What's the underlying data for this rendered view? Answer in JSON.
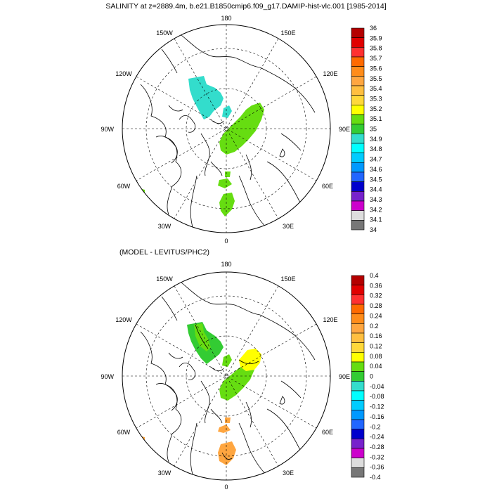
{
  "title": "SALINITY at z=2889.4m, b.e21.B1850cmip6.f09_g17.DAMIP-hist-vlc.001 [1985-2014]",
  "subtitle": "(MODEL - LEVITUS/PHC2)",
  "map_projection": "polar stereographic (north)",
  "longitude_labels": [
    "180",
    "150E",
    "120E",
    "90E",
    "60E",
    "30E",
    "0",
    "30W",
    "60W",
    "90W",
    "120W",
    "150W"
  ],
  "panels": [
    {
      "name": "salinity",
      "colorbar": {
        "labels": [
          "36",
          "35.9",
          "35.8",
          "35.7",
          "35.6",
          "35.5",
          "35.4",
          "35.3",
          "35.2",
          "35.1",
          "35",
          "34.9",
          "34.8",
          "34.7",
          "34.6",
          "34.5",
          "34.4",
          "34.3",
          "34.2",
          "34.1",
          "34"
        ],
        "colors": [
          "#b40000",
          "#e00000",
          "#ff3030",
          "#ff6a00",
          "#ff8c1a",
          "#ffa640",
          "#ffbf40",
          "#ffd83a",
          "#ffff00",
          "#66dd11",
          "#33cc33",
          "#33ddcc",
          "#00ffff",
          "#00ccff",
          "#0099ff",
          "#2266ff",
          "#0000cc",
          "#7722cc",
          "#cc00cc",
          "#dddddd",
          "#777777"
        ]
      },
      "regions": [
        {
          "id": "canada-basin-patch",
          "value_class": "34.9-35",
          "color": "#33ddcc"
        },
        {
          "id": "central-basin-patch",
          "value_class": "35.1-35.2",
          "color": "#66dd11"
        },
        {
          "id": "fram-strait-patch",
          "value_class": "35.1-35.2",
          "color": "#66dd11"
        },
        {
          "id": "greenland-sea-patch",
          "value_class": "35.1-35.2",
          "color": "#66dd11"
        },
        {
          "id": "labrador-patch",
          "value_class": "35.1-35.2",
          "color": "#66dd11"
        },
        {
          "id": "north-atlantic-patch",
          "value_class": "35.1-35.2",
          "color": "#66dd11"
        }
      ]
    },
    {
      "name": "difference",
      "colorbar": {
        "labels": [
          "0.4",
          "0.36",
          "0.32",
          "0.28",
          "0.24",
          "0.2",
          "0.16",
          "0.12",
          "0.08",
          "0.04",
          "0",
          "-0.04",
          "-0.08",
          "-0.12",
          "-0.16",
          "-0.2",
          "-0.24",
          "-0.28",
          "-0.32",
          "-0.36",
          "-0.4"
        ],
        "colors": [
          "#b40000",
          "#e00000",
          "#ff3030",
          "#ff6a00",
          "#ff8c1a",
          "#ffa640",
          "#ffbf40",
          "#ffd83a",
          "#ffff00",
          "#66dd11",
          "#33cc33",
          "#33ddcc",
          "#00ffff",
          "#00ccff",
          "#0099ff",
          "#2266ff",
          "#0000cc",
          "#7722cc",
          "#cc00cc",
          "#dddddd",
          "#777777"
        ]
      },
      "regions": [
        {
          "id": "canada-basin-patch",
          "value_class": "0-0.04",
          "color": "#33cc33"
        },
        {
          "id": "canada-basin-patch-inner",
          "value_class": "0.04-0.08",
          "color": "#66dd11"
        },
        {
          "id": "central-basin-patch",
          "value_class": "0.04-0.08",
          "color": "#66dd11"
        },
        {
          "id": "eurasian-basin-patch",
          "value_class": "0.08-0.12",
          "color": "#ffff00"
        },
        {
          "id": "fram-strait-patch",
          "value_class": "0.2-0.24",
          "color": "#ffa640"
        },
        {
          "id": "greenland-sea-patch",
          "value_class": "0.2-0.24",
          "color": "#ffa640"
        },
        {
          "id": "labrador-patch",
          "value_class": "0.2-0.24",
          "color": "#ffa640"
        },
        {
          "id": "north-atlantic-patch",
          "value_class": "0.2-0.24",
          "color": "#ffa640"
        }
      ]
    }
  ]
}
